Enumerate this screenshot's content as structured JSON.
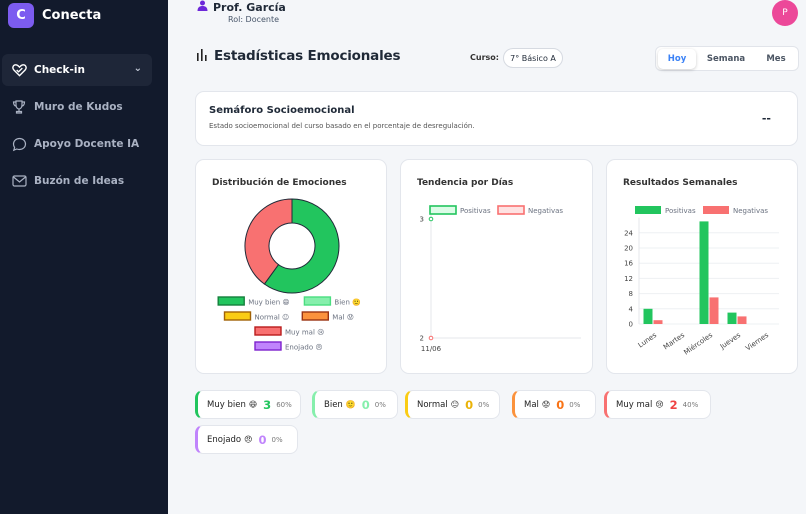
{
  "brand": {
    "logo_letter": "C",
    "name": "Conecta"
  },
  "sidebar": {
    "items": [
      {
        "label": "Check-in",
        "icon": "heart-check-icon",
        "active": true
      },
      {
        "label": "Muro de Kudos",
        "icon": "trophy-icon"
      },
      {
        "label": "Apoyo Docente IA",
        "icon": "chat-icon"
      },
      {
        "label": "Buzón de Ideas",
        "icon": "mail-icon"
      }
    ]
  },
  "header": {
    "name": "Prof. García",
    "role": "Rol: Docente",
    "avatar_letter": "P"
  },
  "page": {
    "title": "Estadísticas Emocionales",
    "curso_label": "Curso:",
    "curso_value": "7° Básico A",
    "periods": [
      "Hoy",
      "Semana",
      "Mes"
    ],
    "active_period": "Hoy"
  },
  "semaforo": {
    "title": "Semáforo Socioemocional",
    "subtitle": "Estado socioemocional del curso basado en el porcentaje de desregulación.",
    "value": "--"
  },
  "colors": {
    "muy_bien": "#22c55e",
    "bien": "#86efac",
    "normal": "#facc15",
    "mal": "#fb923c",
    "muy_mal": "#f87171",
    "enojado": "#c084fc",
    "accent": "#7c5cf0",
    "sidebar_bg": "#121a2c"
  },
  "chart_data": [
    {
      "type": "pie",
      "title": "Distribución de Emociones",
      "labels": [
        "Muy bien 😄",
        "Bien 🙂",
        "Normal 😐",
        "Mal 😟",
        "Muy mal 😢",
        "Enojado 😠"
      ],
      "values": [
        3,
        0,
        0,
        0,
        2,
        0
      ],
      "donut": true,
      "legend": "bottom"
    },
    {
      "type": "line",
      "title": "Tendencia por Días",
      "x": [
        "11/06"
      ],
      "series": [
        {
          "name": "Positivas",
          "values": [
            3
          ]
        },
        {
          "name": "Negativas",
          "values": [
            2
          ]
        }
      ],
      "yticks": [
        2,
        3
      ],
      "legend": "top"
    },
    {
      "type": "bar",
      "title": "Resultados Semanales",
      "categories": [
        "Lunes",
        "Martes",
        "Miércoles",
        "Jueves",
        "Viernes"
      ],
      "series": [
        {
          "name": "Positivas",
          "values": [
            4,
            0,
            27,
            3,
            0
          ]
        },
        {
          "name": "Negativas",
          "values": [
            1,
            0,
            7,
            2,
            0
          ]
        }
      ],
      "yticks": [
        0,
        4,
        8,
        12,
        16,
        20,
        24
      ],
      "ylim": [
        0,
        28
      ],
      "legend": "top"
    }
  ],
  "summary": [
    {
      "label": "Muy bien",
      "emoji": "😄",
      "count": "3",
      "pct": "60%",
      "key": "muy_bien",
      "countColor": "#22c55e"
    },
    {
      "label": "Bien",
      "emoji": "🙂",
      "count": "0",
      "pct": "0%",
      "key": "bien",
      "countColor": "#86efac"
    },
    {
      "label": "Normal",
      "emoji": "😐",
      "count": "0",
      "pct": "0%",
      "key": "normal",
      "countColor": "#eab308"
    },
    {
      "label": "Mal",
      "emoji": "😟",
      "count": "0",
      "pct": "0%",
      "key": "mal",
      "countColor": "#f97316"
    },
    {
      "label": "Muy mal",
      "emoji": "😢",
      "count": "2",
      "pct": "40%",
      "key": "muy_mal",
      "countColor": "#ef4444"
    },
    {
      "label": "Enojado",
      "emoji": "😠",
      "count": "0",
      "pct": "0%",
      "key": "enojado",
      "countColor": "#c084fc"
    }
  ]
}
